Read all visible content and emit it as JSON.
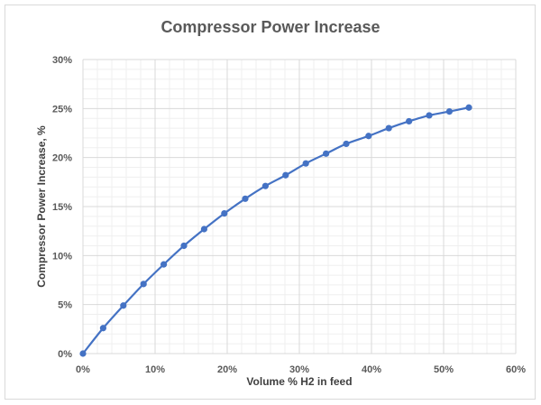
{
  "chart_data": {
    "type": "scatter",
    "title": "Compressor Power Increase",
    "xlabel": "Volume % H2 in feed",
    "ylabel": "Compressor Power Increase, %",
    "xlim": [
      0,
      0.6
    ],
    "ylim": [
      0,
      0.3
    ],
    "x_ticks": [
      "0%",
      "10%",
      "20%",
      "30%",
      "40%",
      "50%",
      "60%"
    ],
    "y_ticks": [
      "0%",
      "5%",
      "10%",
      "15%",
      "20%",
      "25%",
      "30%"
    ],
    "grid": true,
    "colors": {
      "series": "#4472c4",
      "grid_major": "#d9d9d9",
      "grid_minor": "#efefef",
      "text": "#595959"
    },
    "series": [
      {
        "x": [
          0.0,
          0.028,
          0.056,
          0.084,
          0.112,
          0.14,
          0.168,
          0.196,
          0.225,
          0.253,
          0.281,
          0.309,
          0.337,
          0.365,
          0.396,
          0.424,
          0.452,
          0.48,
          0.508,
          0.535
        ],
        "y": [
          0.0,
          0.026,
          0.049,
          0.071,
          0.091,
          0.11,
          0.127,
          0.143,
          0.158,
          0.171,
          0.182,
          0.194,
          0.204,
          0.214,
          0.222,
          0.23,
          0.237,
          0.243,
          0.247,
          0.251
        ]
      }
    ]
  }
}
